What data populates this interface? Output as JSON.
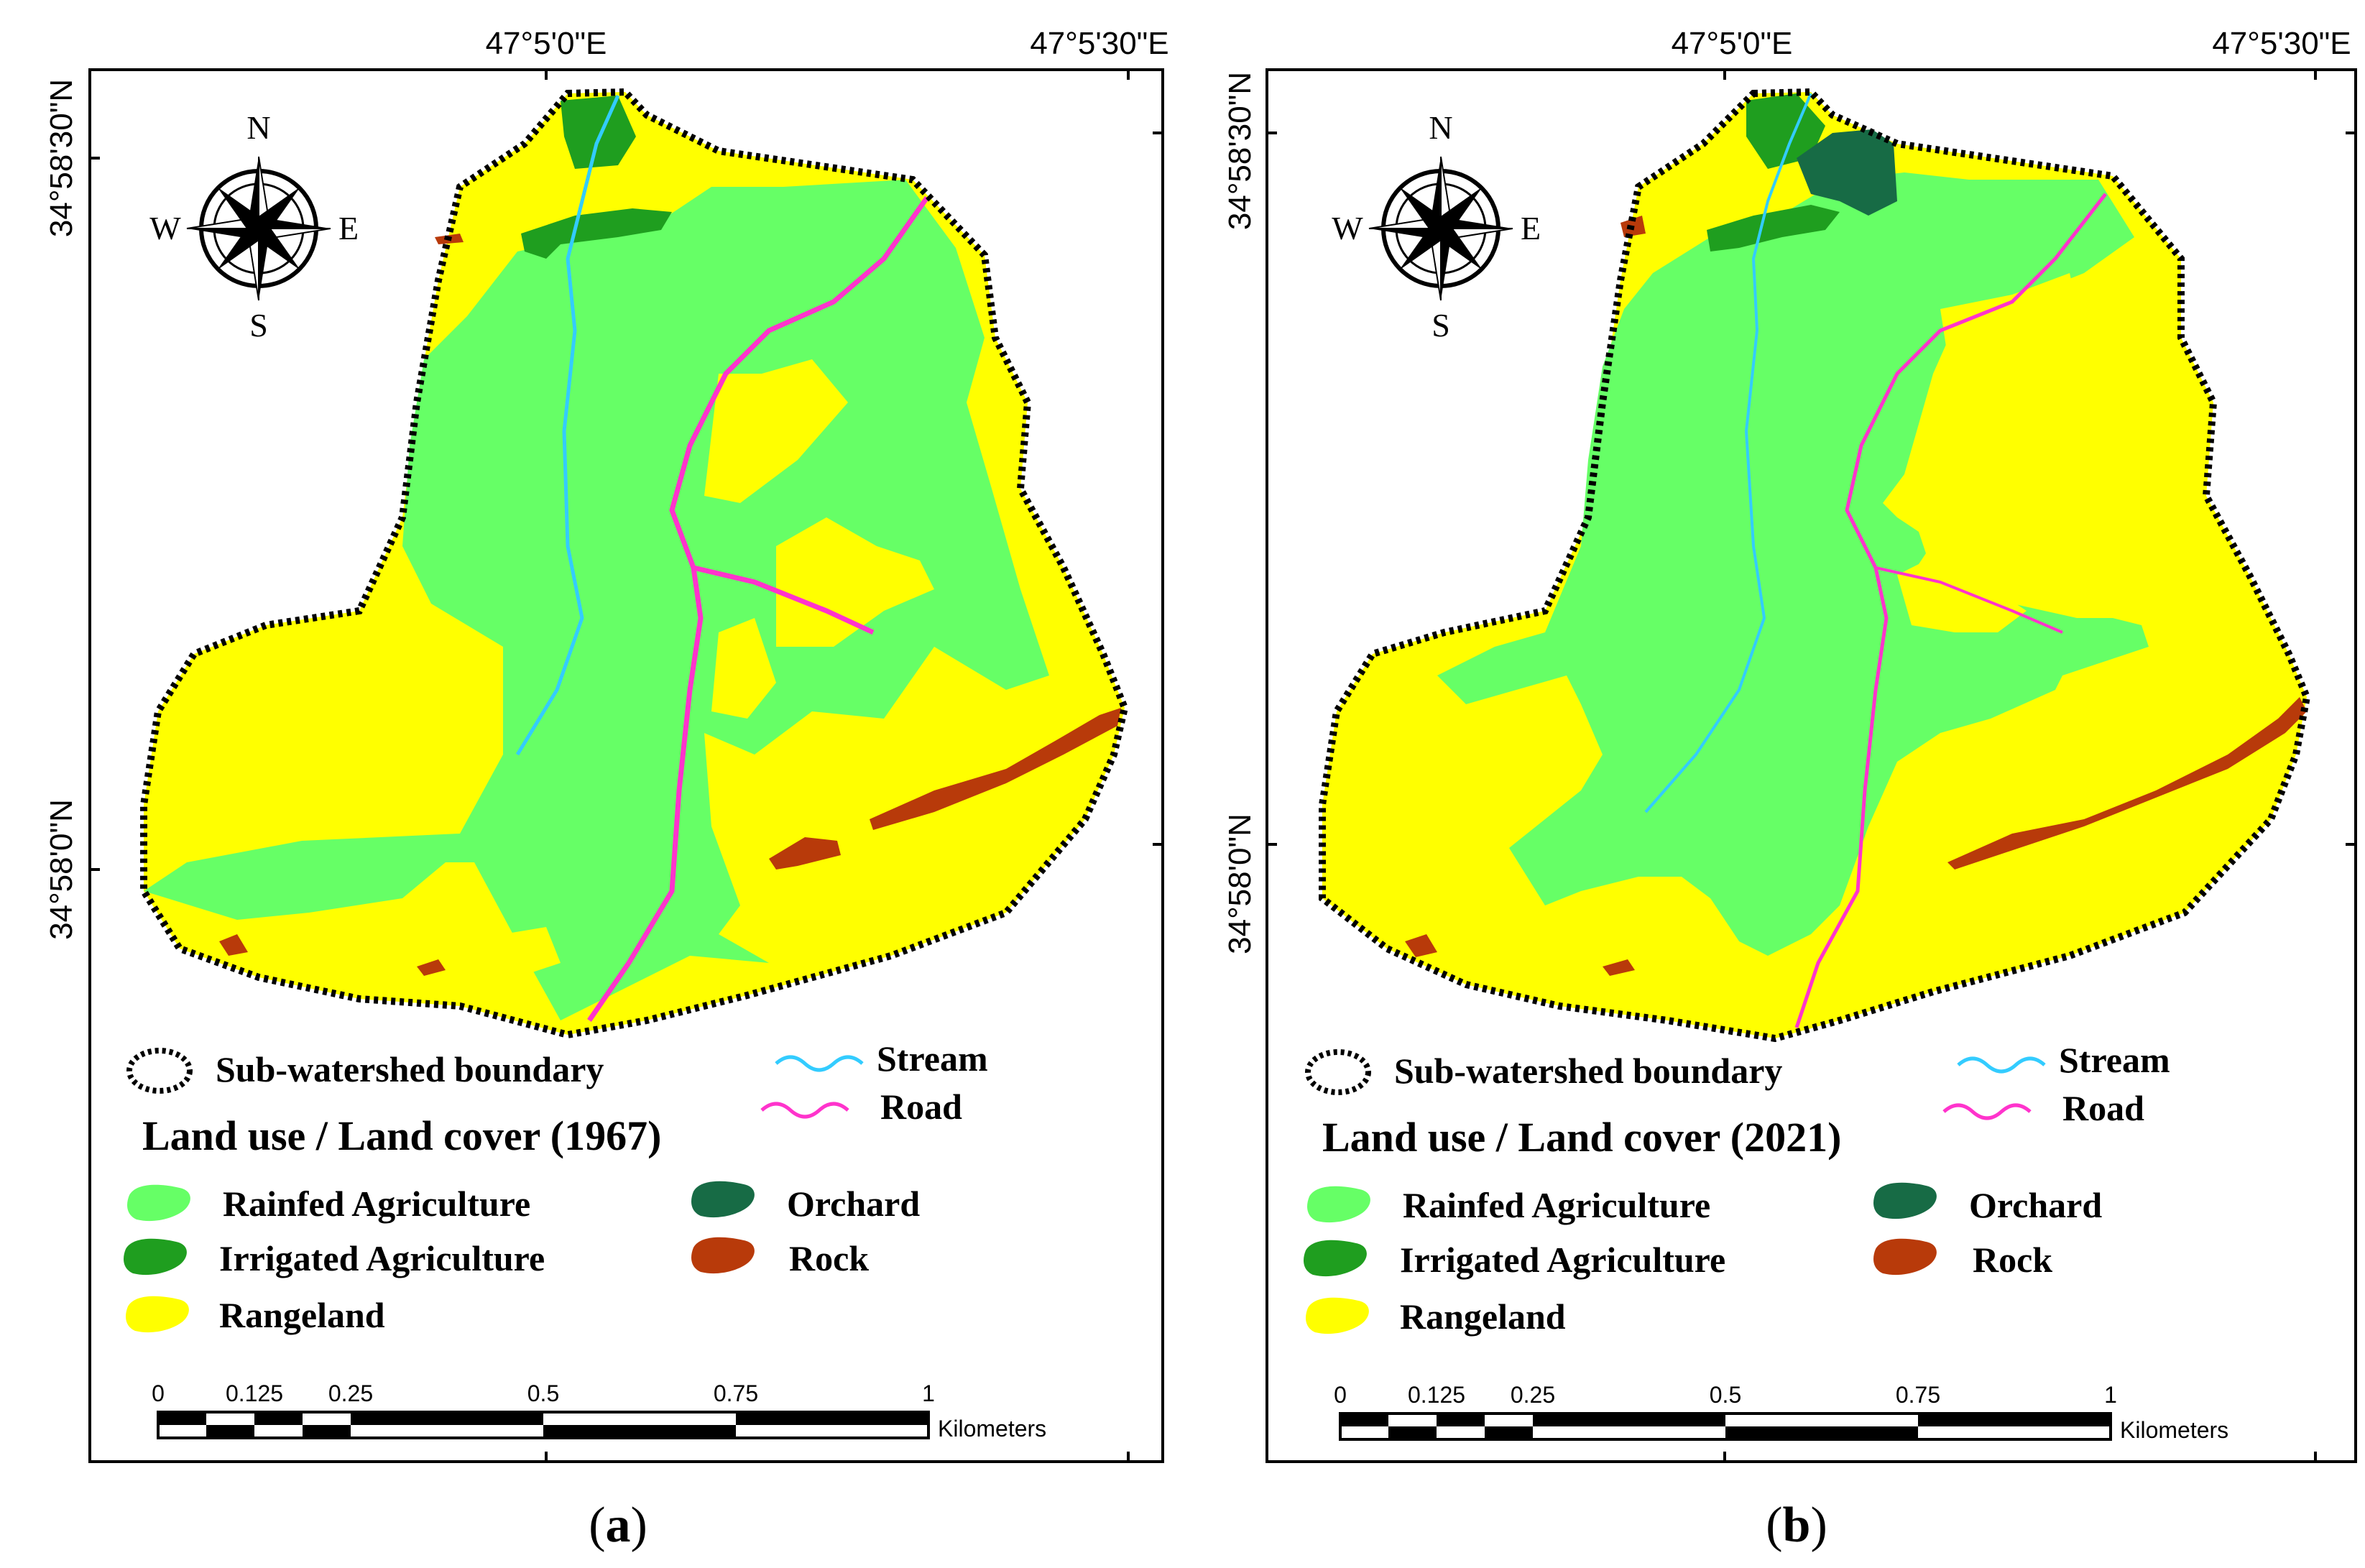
{
  "legend_colors": {
    "rainfed_agriculture": "#66ff66",
    "irrigated_agriculture": "#1f9e1f",
    "rangeland": "#ffff00",
    "orchard": "#176b45",
    "rock": "#b83a0a",
    "stream": "#33ccff",
    "road": "#ff33cc",
    "boundary": "#000000"
  },
  "panels": [
    {
      "caption_open": "(",
      "caption_letter": "a",
      "caption_close": ")",
      "lon_labels": [
        "47°5'0\"E",
        "47°5'30\"E"
      ],
      "lat_labels": [
        "34°58'30\"N",
        "34°58'0\"N"
      ],
      "compass": {
        "n": "N",
        "s": "S",
        "e": "E",
        "w": "W"
      },
      "legend": {
        "boundary": "Sub-watershed boundary",
        "stream": "Stream",
        "road": "Road",
        "title": "Land use / Land cover (1967)",
        "rainfed": "Rainfed Agriculture",
        "irrigated": "Irrigated Agriculture",
        "rangeland": "Rangeland",
        "orchard": "Orchard",
        "rock": "Rock"
      },
      "scale": {
        "ticks": [
          "0",
          "0.125",
          "0.25",
          "0.5",
          "0.75",
          "1"
        ],
        "unit": "Kilometers"
      }
    },
    {
      "caption_open": "(",
      "caption_letter": "b",
      "caption_close": ")",
      "lon_labels": [
        "47°5'0\"E",
        "47°5'30\"E"
      ],
      "lat_labels": [
        "34°58'30\"N",
        "34°58'0\"N"
      ],
      "compass": {
        "n": "N",
        "s": "S",
        "e": "E",
        "w": "W"
      },
      "legend": {
        "boundary": "Sub-watershed boundary",
        "stream": "Stream",
        "road": "Road",
        "title": "Land use / Land cover (2021)",
        "rainfed": "Rainfed Agriculture",
        "irrigated": "Irrigated Agriculture",
        "rangeland": "Rangeland",
        "orchard": "Orchard",
        "rock": "Rock"
      },
      "scale": {
        "ticks": [
          "0",
          "0.125",
          "0.25",
          "0.5",
          "0.75",
          "1"
        ],
        "unit": "Kilometers"
      }
    }
  ]
}
